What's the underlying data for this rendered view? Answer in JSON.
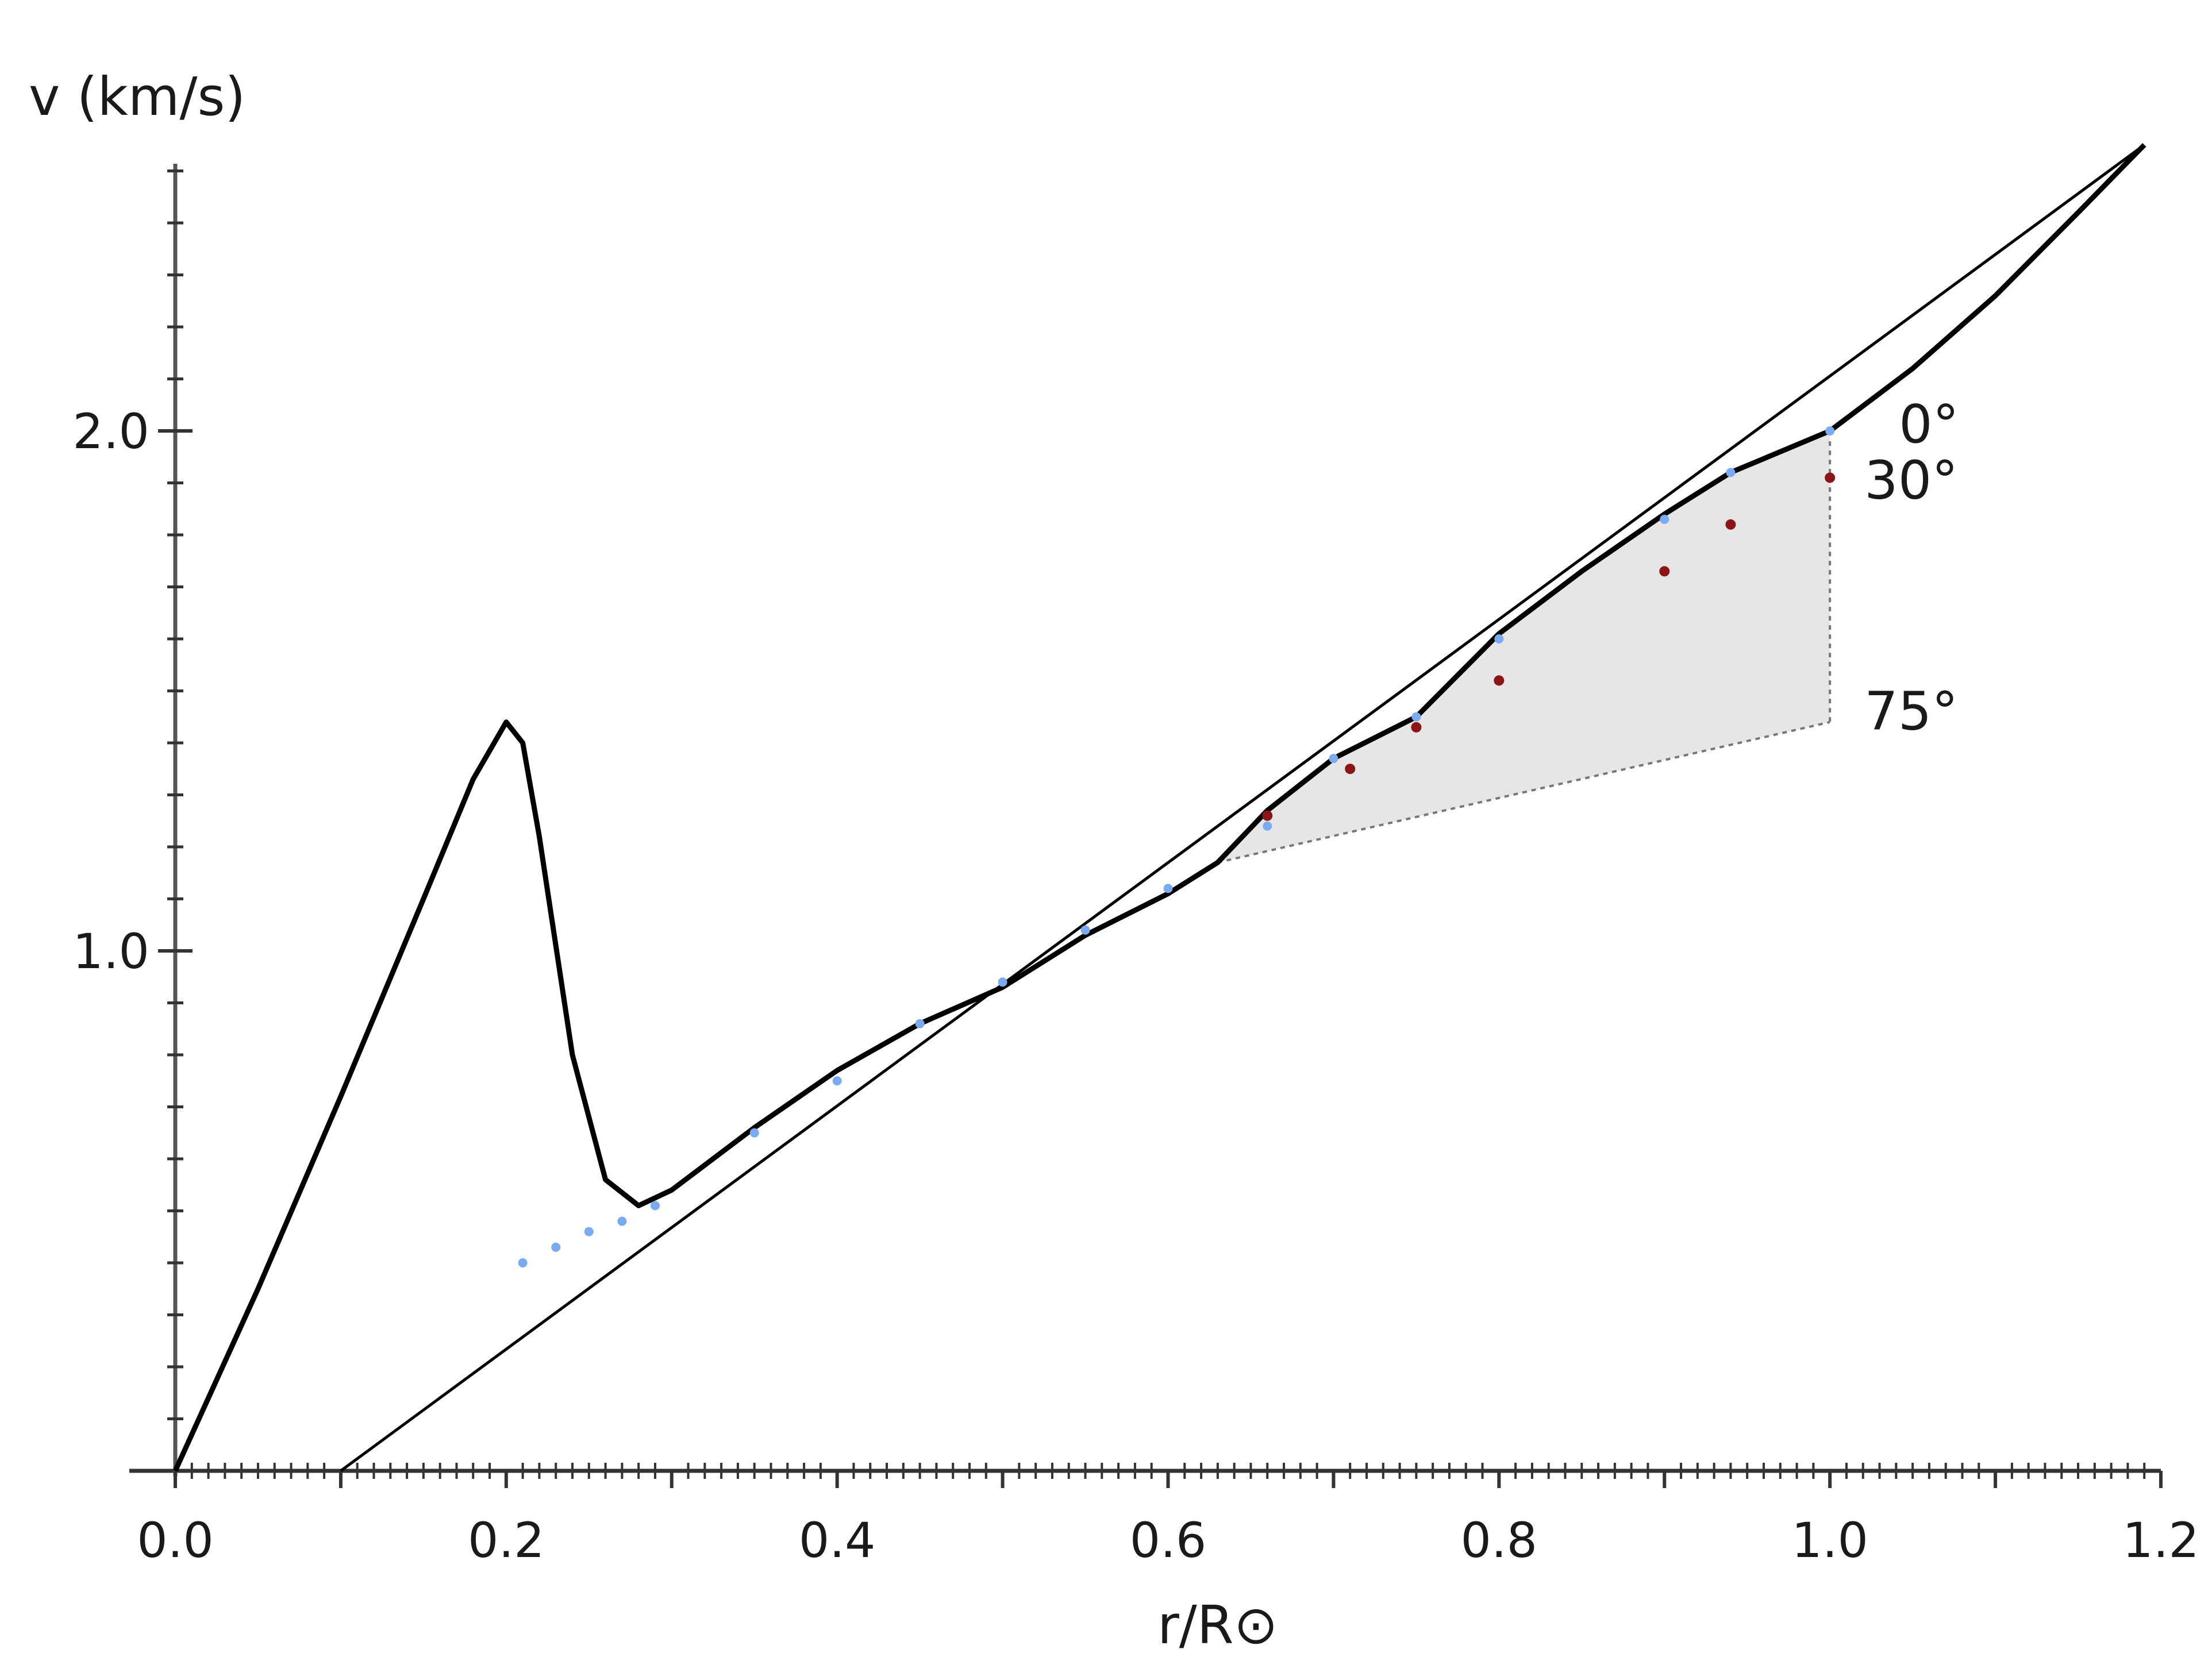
{
  "chart_data": {
    "type": "line",
    "title": "",
    "xlabel": "r/R⊙",
    "ylabel": "v (km/s)",
    "xlim": [
      0,
      1.2
    ],
    "ylim": [
      0,
      2.55
    ],
    "x_ticks": [
      {
        "value": 0.0,
        "label": "0.0"
      },
      {
        "value": 0.2,
        "label": "0.2"
      },
      {
        "value": 0.4,
        "label": "0.4"
      },
      {
        "value": 0.6,
        "label": "0.6"
      },
      {
        "value": 0.8,
        "label": "0.8"
      },
      {
        "value": 1.0,
        "label": "1.0"
      },
      {
        "value": 1.2,
        "label": "1.2"
      }
    ],
    "y_ticks": [
      {
        "value": 1.0,
        "label": "1.0"
      },
      {
        "value": 2.0,
        "label": "2.0"
      }
    ],
    "series": [
      {
        "style": "thin-line",
        "color": "#000000",
        "x": [
          0.1,
          1.19
        ],
        "y": [
          0.0,
          2.55
        ]
      },
      {
        "style": "thick-curve",
        "color": "#000000",
        "x": [
          0.0,
          0.05,
          0.1,
          0.15,
          0.18,
          0.2,
          0.21,
          0.22,
          0.24,
          0.26,
          0.28,
          0.3,
          0.35,
          0.4,
          0.45,
          0.5,
          0.55,
          0.6,
          0.63,
          0.66,
          0.7,
          0.75,
          0.8,
          0.85,
          0.9,
          0.94,
          1.0,
          1.05,
          1.1,
          1.15,
          1.19
        ],
        "y": [
          0.0,
          0.35,
          0.72,
          1.1,
          1.33,
          1.44,
          1.4,
          1.22,
          0.8,
          0.56,
          0.51,
          0.54,
          0.66,
          0.77,
          0.86,
          0.93,
          1.03,
          1.11,
          1.17,
          1.27,
          1.37,
          1.45,
          1.61,
          1.73,
          1.84,
          1.92,
          2.0,
          2.12,
          2.26,
          2.42,
          2.55
        ]
      },
      {
        "style": "blue-dots",
        "color": "#7aaaf0",
        "x": [
          0.21,
          0.23,
          0.25,
          0.27,
          0.29,
          0.35,
          0.4,
          0.45,
          0.5,
          0.55,
          0.6,
          0.66,
          0.7,
          0.75,
          0.8,
          0.9,
          0.94,
          1.0
        ],
        "y": [
          0.4,
          0.43,
          0.46,
          0.48,
          0.51,
          0.65,
          0.75,
          0.86,
          0.94,
          1.04,
          1.12,
          1.24,
          1.37,
          1.45,
          1.6,
          1.83,
          1.92,
          2.0
        ]
      },
      {
        "style": "red-dots",
        "color": "#8b1414",
        "x": [
          0.66,
          0.71,
          0.75,
          0.8,
          0.9,
          0.94,
          1.0
        ],
        "y": [
          1.26,
          1.35,
          1.43,
          1.52,
          1.73,
          1.82,
          1.91
        ]
      }
    ],
    "shaded_region": {
      "fill": "#e6e6e6",
      "x": [
        0.63,
        0.66,
        0.7,
        0.75,
        0.8,
        0.85,
        0.9,
        0.94,
        1.0,
        1.0
      ],
      "upper_y": [
        1.17,
        1.27,
        1.37,
        1.45,
        1.61,
        1.73,
        1.84,
        1.92,
        2.0,
        1.98
      ],
      "lower": [
        [
          0.63,
          1.17
        ],
        [
          1.0,
          1.44
        ]
      ]
    },
    "annotations": [
      {
        "text": "0°",
        "x": 1.0,
        "y": 2.0
      },
      {
        "text": "30°",
        "x": 1.0,
        "y": 1.92
      },
      {
        "text": "75°",
        "x": 1.0,
        "y": 1.47
      }
    ],
    "grid": false,
    "legend": "none"
  }
}
